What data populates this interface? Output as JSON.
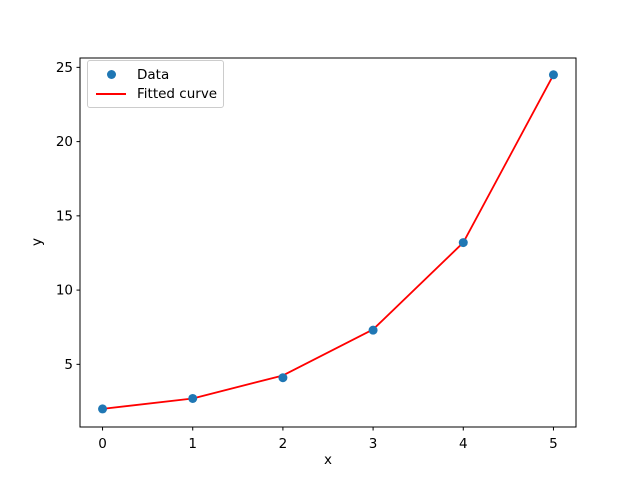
{
  "figure": {
    "background": "#ffffff",
    "axis_color": "#000000"
  },
  "chart_data": {
    "type": "scatter",
    "title": "",
    "xlabel": "x",
    "ylabel": "y",
    "xlim": [
      -0.25,
      5.25
    ],
    "ylim": [
      0.78,
      25.63
    ],
    "x_ticks": [
      0,
      1,
      2,
      3,
      4,
      5
    ],
    "y_ticks": [
      5,
      10,
      15,
      20,
      25
    ],
    "grid": false,
    "legend": {
      "position": "upper-left",
      "entries": [
        {
          "label": "Data",
          "handle": "marker",
          "color": "#1f77b4"
        },
        {
          "label": "Fitted curve",
          "handle": "line",
          "color": "#ff0000"
        }
      ]
    },
    "series": [
      {
        "name": "Data",
        "type": "scatter",
        "marker": "circle",
        "color": "#1f77b4",
        "x": [
          0,
          1,
          2,
          3,
          4,
          5
        ],
        "y": [
          2.0,
          2.7,
          4.1,
          7.3,
          13.2,
          24.5
        ]
      },
      {
        "name": "Fitted curve",
        "type": "line",
        "color": "#ff0000",
        "x": [
          0,
          1,
          2,
          3,
          4,
          5
        ],
        "y": [
          2.0,
          2.7,
          4.25,
          7.35,
          13.2,
          24.5
        ]
      }
    ]
  }
}
